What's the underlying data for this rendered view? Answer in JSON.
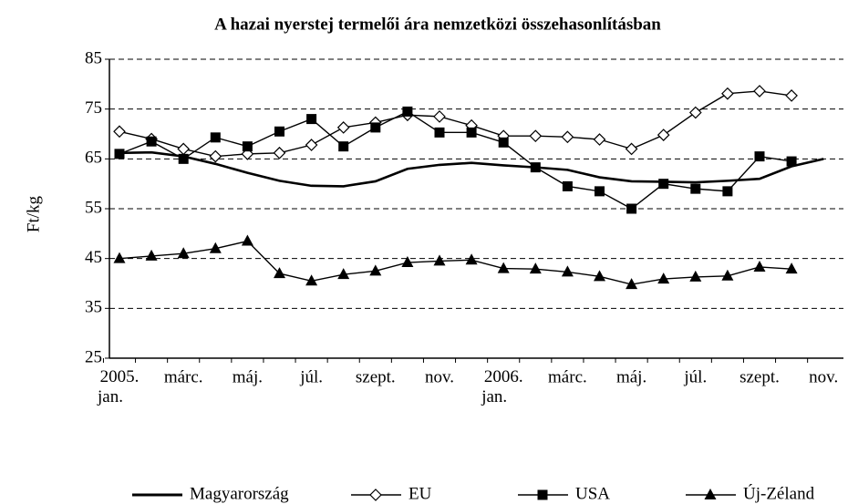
{
  "chart_data": {
    "type": "line",
    "title": "A hazai nyerstej termelői ára nemzetközi összehasonlításban",
    "y_label": "Ft/kg",
    "categories": [
      "2005. jan.",
      null,
      "márc.",
      null,
      "máj.",
      null,
      "júl.",
      null,
      "szept.",
      null,
      "nov.",
      null,
      "2006. jan.",
      null,
      "márc.",
      null,
      "máj.",
      null,
      "júl.",
      null,
      "szept.",
      null,
      "nov."
    ],
    "series": [
      {
        "name": "Magyarország",
        "color": "#000000",
        "marker": "none",
        "values": [
          66.2,
          66.3,
          65.5,
          64,
          62.2,
          60.6,
          59.6,
          59.5,
          60.5,
          63,
          63.8,
          64.2,
          63.7,
          63.3,
          62.8,
          61.3,
          60.5,
          60.4,
          60.3,
          60.6,
          61,
          63.5,
          65
        ]
      },
      {
        "name": "EU",
        "color": "#000000",
        "marker": "diamond",
        "values": [
          70.5,
          69,
          67,
          65.5,
          66,
          66.2,
          67.8,
          71.3,
          72.3,
          73.8,
          73.5,
          71.7,
          69.6,
          69.6,
          69.4,
          68.9,
          67,
          69.8,
          74.3,
          78.1,
          78.6,
          77.7,
          null
        ]
      },
      {
        "name": "USA",
        "color": "#000000",
        "marker": "square",
        "values": [
          66,
          68.5,
          65,
          69.3,
          67.5,
          70.5,
          73,
          67.5,
          71.3,
          74.5,
          70.3,
          70.3,
          68.3,
          63.3,
          59.5,
          58.5,
          55,
          60,
          59,
          58.5,
          65.5,
          64.5,
          null
        ]
      },
      {
        "name": "Új-Zéland",
        "color": "#000000",
        "marker": "triangle",
        "values": [
          45,
          45.5,
          46,
          47,
          48.5,
          42,
          40.5,
          41.8,
          42.5,
          44.2,
          44.5,
          44.7,
          43,
          42.9,
          42.3,
          41.4,
          39.8,
          40.9,
          41.3,
          41.5,
          43.3,
          42.9,
          null
        ]
      }
    ],
    "ylim": [
      25,
      85
    ],
    "yticks": [
      25,
      35,
      45,
      55,
      65,
      75,
      85
    ],
    "grid": true,
    "legend": "bottom"
  }
}
